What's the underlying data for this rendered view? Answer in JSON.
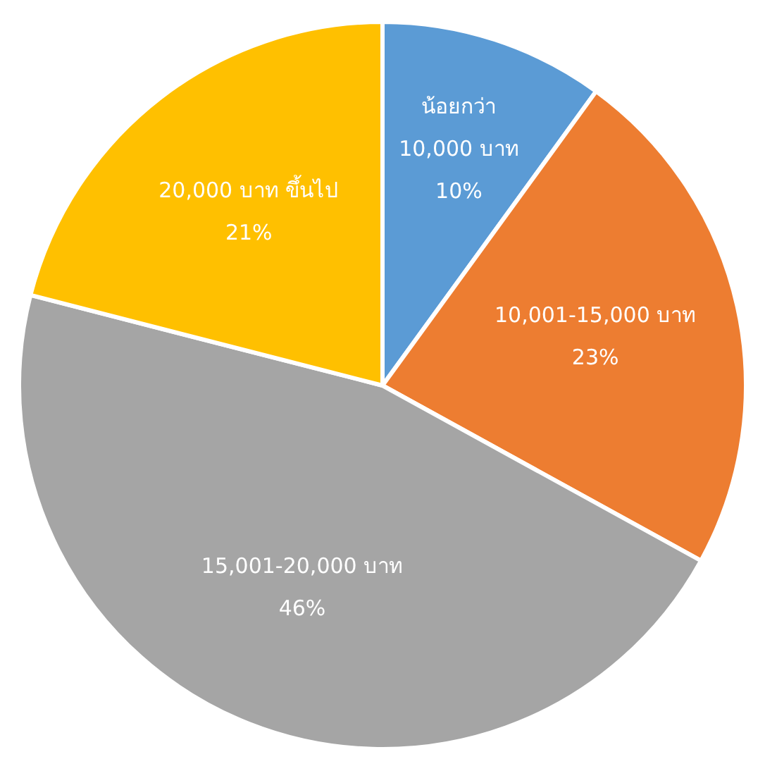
{
  "chart_data": {
    "type": "pie",
    "categories": [
      "น้อยกว่า 10,000 บาท",
      "10,001-15,000 บาท",
      "15,001-20,000 บาท",
      "20,000 บาท ขึ้นไป"
    ],
    "values": [
      10,
      23,
      46,
      21
    ],
    "value_labels": [
      "10%",
      "23%",
      "46%",
      "21%"
    ],
    "colors": [
      "#5b9bd5",
      "#ed7d31",
      "#a5a5a5",
      "#ffc000"
    ],
    "data_labels": true,
    "legend": false
  }
}
